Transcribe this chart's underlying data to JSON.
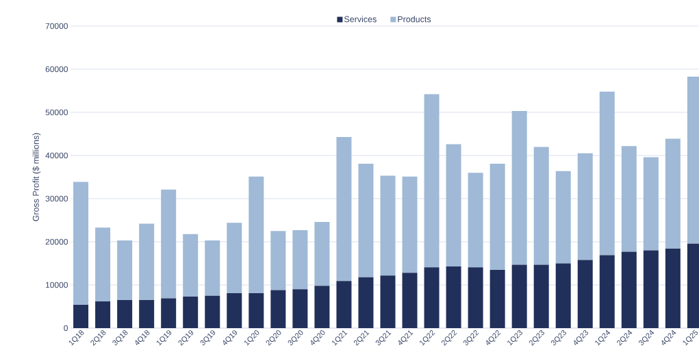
{
  "chart_data": {
    "type": "bar",
    "stacked": true,
    "ylabel": "Gross Profit ($ millions)",
    "categories": [
      "1Q18",
      "2Q18",
      "3Q18",
      "4Q18",
      "1Q19",
      "2Q19",
      "3Q19",
      "4Q19",
      "1Q20",
      "2Q20",
      "3Q20",
      "4Q20",
      "1Q21",
      "2Q21",
      "3Q21",
      "4Q21",
      "1Q22",
      "2Q22",
      "3Q22",
      "4Q22",
      "1Q23",
      "2Q23",
      "3Q23",
      "4Q23",
      "1Q24",
      "2Q24",
      "3Q24",
      "4Q24",
      "1Q25"
    ],
    "series": [
      {
        "name": "Services",
        "color": "#21305a",
        "values": [
          5400,
          6200,
          6500,
          6500,
          6900,
          7300,
          7500,
          8100,
          8100,
          8800,
          9000,
          9800,
          10900,
          11800,
          12200,
          12800,
          14100,
          14300,
          14100,
          13500,
          14700,
          14700,
          15000,
          15800,
          16900,
          17700,
          18000,
          18400,
          19600
        ]
      },
      {
        "name": "Products",
        "color": "#9fb9d6",
        "values": [
          28500,
          17100,
          13800,
          17700,
          25200,
          14500,
          12800,
          16300,
          27000,
          13700,
          13700,
          14800,
          33400,
          26300,
          23100,
          22300,
          40100,
          28300,
          21900,
          24600,
          35600,
          27300,
          21400,
          24700,
          37900,
          24500,
          21600,
          25500,
          38700
        ]
      }
    ],
    "ylim": [
      0,
      70000
    ],
    "yticks": [
      0,
      10000,
      20000,
      30000,
      40000,
      50000,
      60000,
      70000
    ],
    "grid": "y",
    "legend": "top"
  }
}
